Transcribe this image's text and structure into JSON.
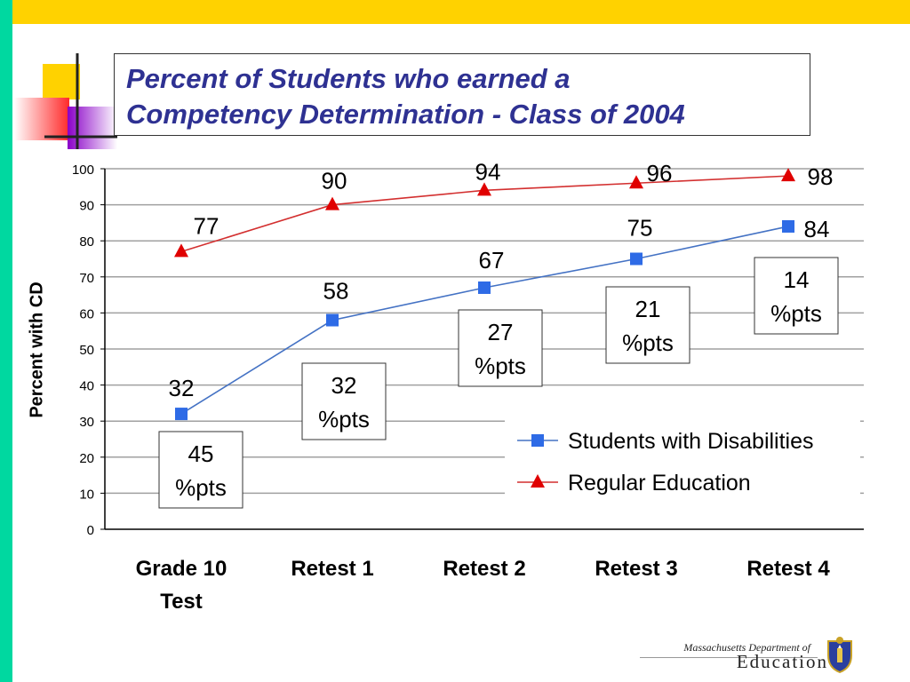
{
  "slide": {
    "title_line1": "Percent of Students who earned a",
    "title_line2": "Competency Determination - Class of 2004",
    "colors": {
      "top_bar": "#FFD200",
      "left_bar": "#00D8A0",
      "title": "#2E3192"
    }
  },
  "logo": {
    "line1": "Massachusetts Department of",
    "line2": "Education",
    "icon": "state-seal-icon"
  },
  "chart_data": {
    "type": "line",
    "title": "",
    "xlabel": "",
    "ylabel": "Percent with CD",
    "ylim": [
      0,
      100
    ],
    "yticks": [
      0,
      10,
      20,
      30,
      40,
      50,
      60,
      70,
      80,
      90,
      100
    ],
    "grid": true,
    "legend_position": "bottom-right",
    "categories": [
      [
        "Grade 10",
        "Test"
      ],
      [
        "Retest 1"
      ],
      [
        "Retest 2"
      ],
      [
        "Retest 3"
      ],
      [
        "Retest 4"
      ]
    ],
    "series": [
      {
        "name": "Students with Disabilities",
        "values": [
          32,
          58,
          67,
          75,
          84
        ],
        "color": "#4472C4",
        "marker_color": "#2E6BE6",
        "marker": "square"
      },
      {
        "name": "Regular Education",
        "values": [
          77,
          90,
          94,
          96,
          98
        ],
        "color": "#D32F2F",
        "marker_color": "#E00000",
        "marker": "triangle"
      }
    ],
    "gap_annotations": [
      {
        "category_index": 0,
        "lines": [
          "45",
          "%pts"
        ]
      },
      {
        "category_index": 1,
        "lines": [
          "32",
          "%pts"
        ]
      },
      {
        "category_index": 2,
        "lines": [
          "27",
          "%pts"
        ]
      },
      {
        "category_index": 3,
        "lines": [
          "21",
          "%pts"
        ]
      },
      {
        "category_index": 4,
        "lines": [
          "14",
          "%pts"
        ]
      }
    ]
  }
}
